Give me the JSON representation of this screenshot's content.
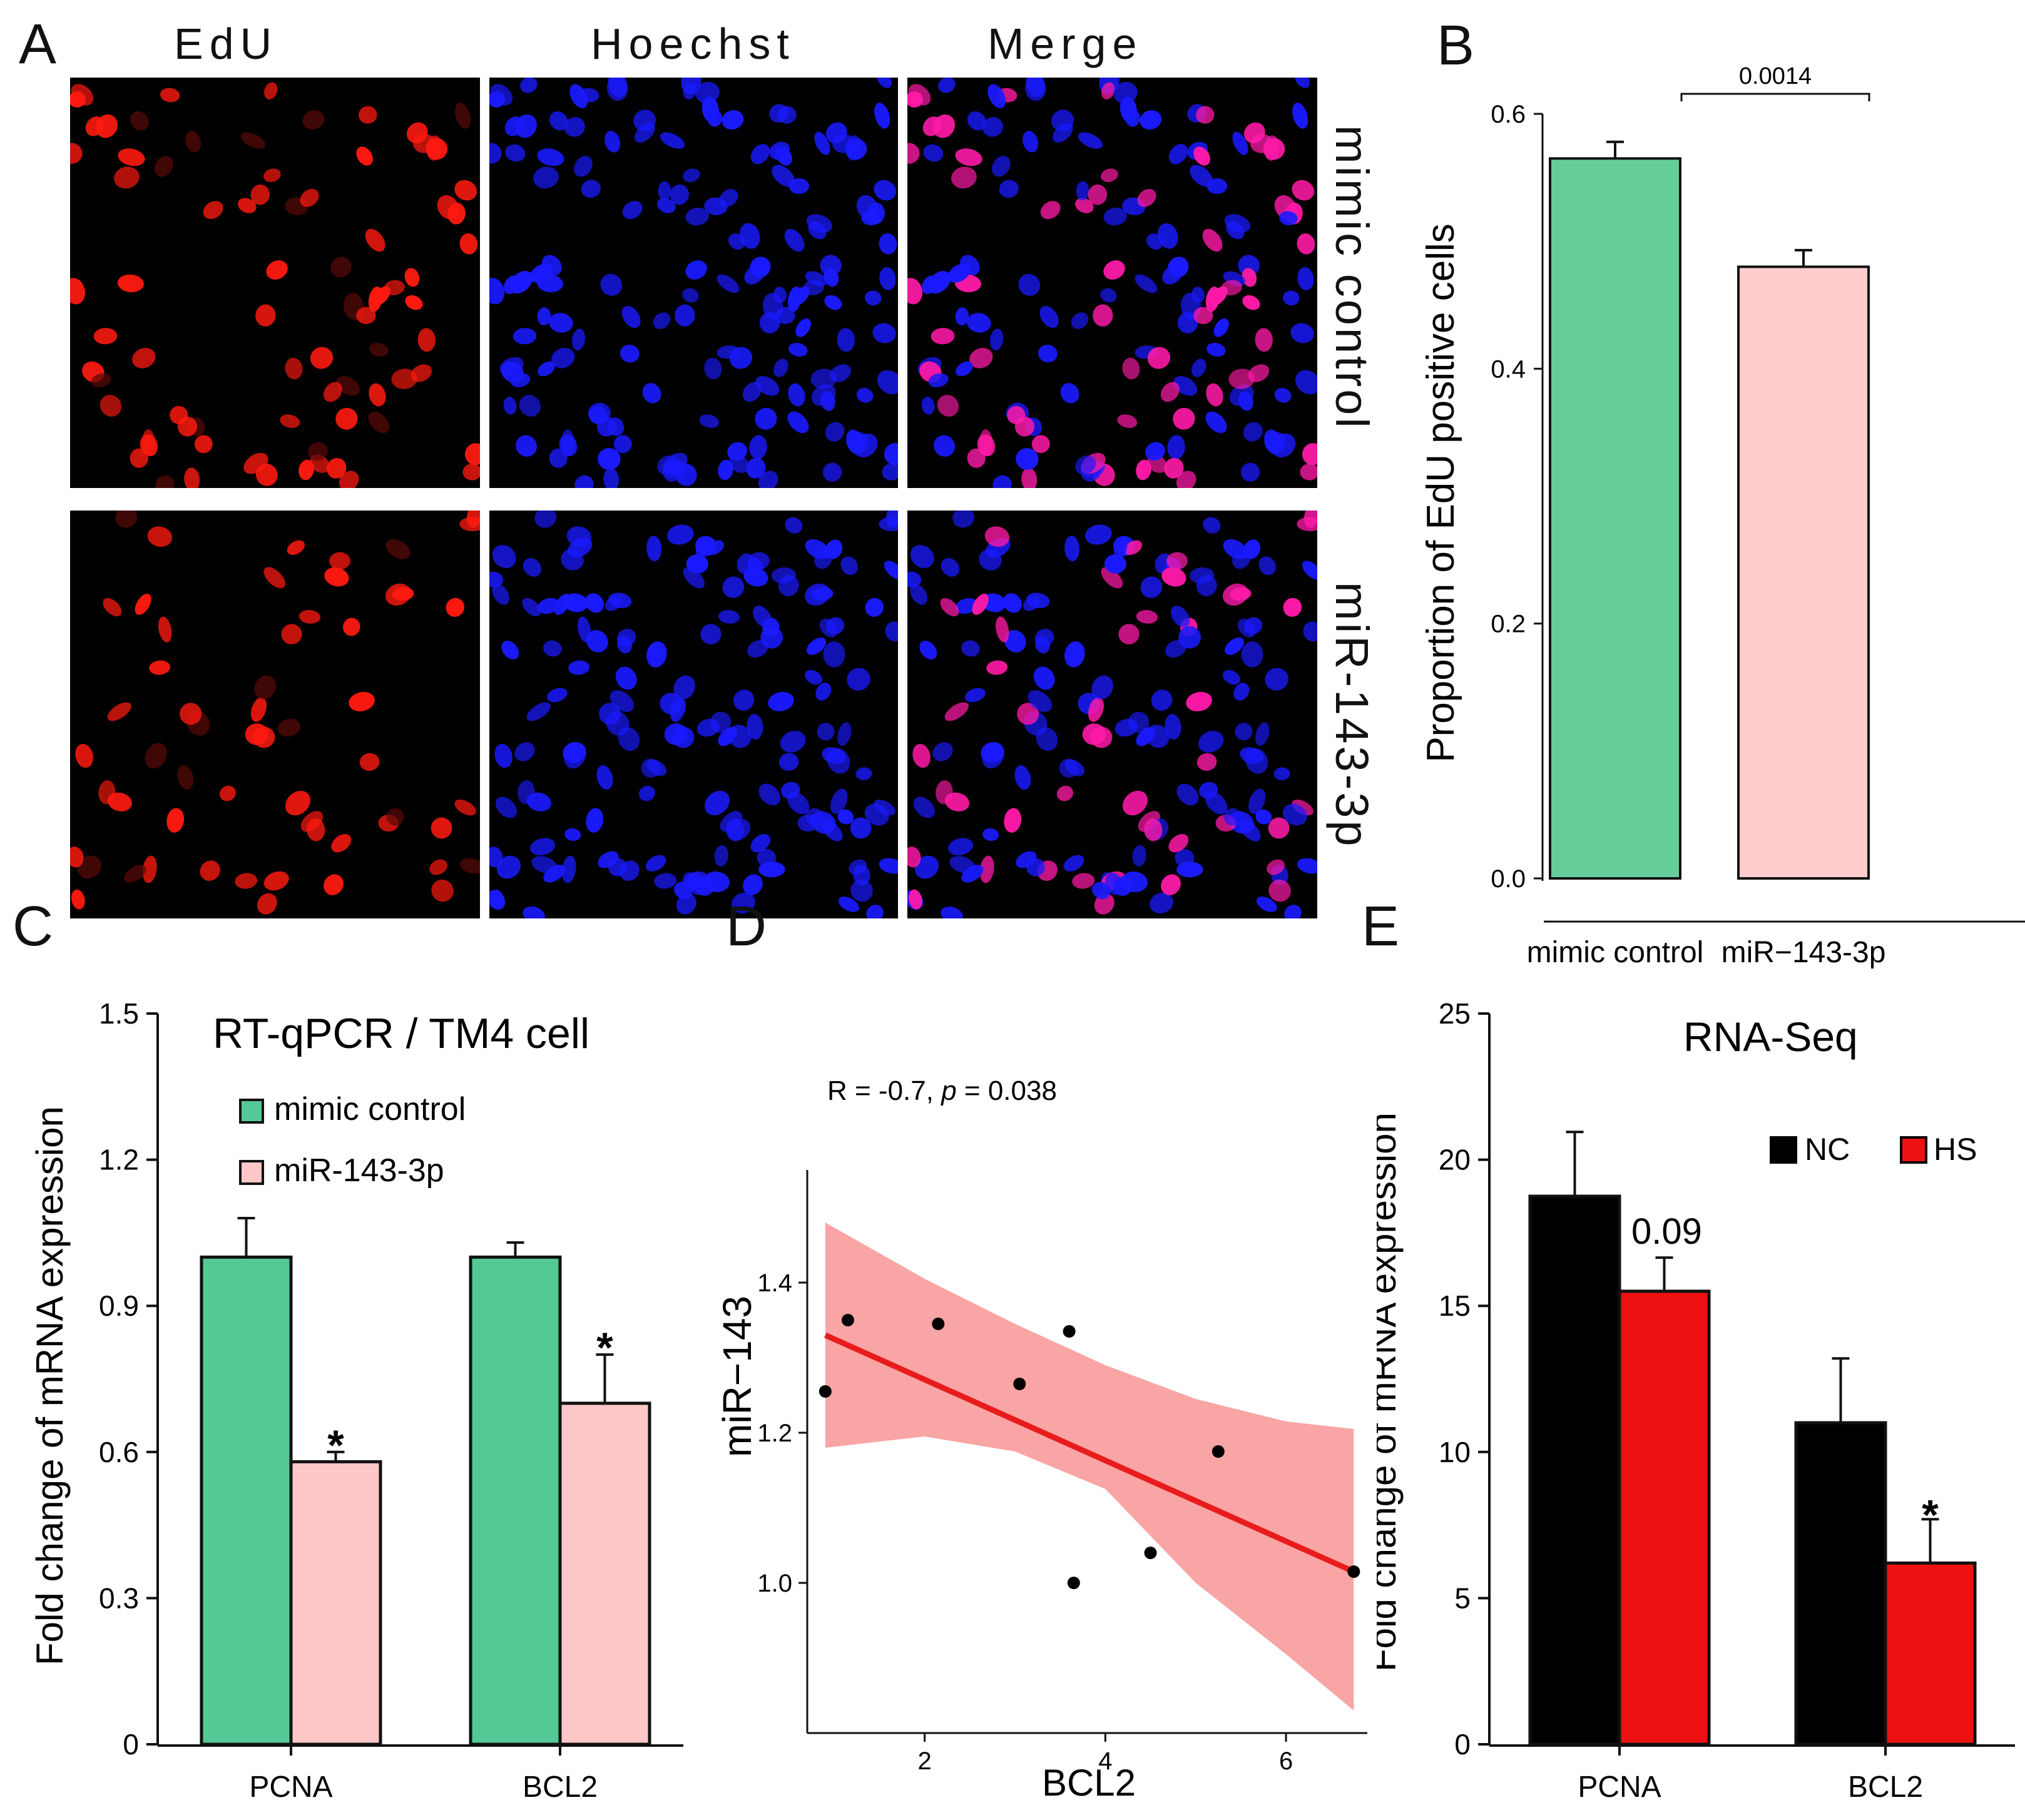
{
  "panel_letters": {
    "a": "A",
    "b": "B",
    "c": "C",
    "d": "D",
    "e": "E"
  },
  "panel_a": {
    "columns": [
      "EdU",
      "Hoechst",
      "Merge"
    ],
    "rows": [
      "mimic control",
      "miR-143-3p"
    ],
    "colors": {
      "edu": "#ff1a10",
      "hoechst": "#1a1aff",
      "merge": "#ff1aa8"
    }
  },
  "chart_data": [
    {
      "id": "B",
      "type": "bar",
      "categories": [
        "mimic control",
        "miR−143-3p"
      ],
      "values": [
        0.565,
        0.48
      ],
      "errors": [
        0.013,
        0.013
      ],
      "colors": [
        "#66cc99",
        "#ffcccc"
      ],
      "ylabel": "Proportion of EdU positive cells",
      "ylim": [
        0,
        0.6
      ],
      "yticks": [
        0.0,
        0.2,
        0.4,
        0.6
      ],
      "ytick_labels": [
        "0.0",
        "0.2",
        "0.4",
        "0.6"
      ],
      "annotation": "0.0014"
    },
    {
      "id": "C",
      "type": "bar",
      "title": "RT-qPCR / TM4 cell",
      "categories": [
        "PCNA",
        "BCL2"
      ],
      "series": [
        {
          "name": "mimic control",
          "values": [
            1.0,
            1.0
          ],
          "errors": [
            0.08,
            0.03
          ],
          "color": "#55c995"
        },
        {
          "name": "miR-143-3p",
          "values": [
            0.58,
            0.7
          ],
          "errors": [
            0.02,
            0.1
          ],
          "color": "#ffc7c7"
        }
      ],
      "significance": [
        "*",
        "*"
      ],
      "ylabel": "Fold change of mRNA expression",
      "ylim": [
        0,
        1.5
      ],
      "yticks": [
        0,
        0.3,
        0.6,
        0.9,
        1.2,
        1.5
      ],
      "ytick_labels": [
        "0",
        "0.3",
        "0.6",
        "0.9",
        "1.2",
        "1.5"
      ]
    },
    {
      "id": "D",
      "type": "scatter",
      "stat_text": {
        "prefix": "R = -0.7, ",
        "p": "p",
        "suffix": " = 0.038"
      },
      "xlabel": "BCL2",
      "ylabel": "miR−143",
      "xlim": [
        0.7,
        6.9
      ],
      "ylim": [
        0.8,
        1.55
      ],
      "xticks": [
        2,
        4,
        6
      ],
      "yticks": [
        1.0,
        1.2,
        1.4
      ],
      "ytick_labels": [
        "1.0",
        "1.2",
        "1.4"
      ],
      "points": [
        {
          "x": 0.9,
          "y": 1.255
        },
        {
          "x": 1.15,
          "y": 1.35
        },
        {
          "x": 2.15,
          "y": 1.345
        },
        {
          "x": 3.05,
          "y": 1.265
        },
        {
          "x": 3.6,
          "y": 1.335
        },
        {
          "x": 3.65,
          "y": 1.0
        },
        {
          "x": 4.5,
          "y": 1.04
        },
        {
          "x": 5.25,
          "y": 1.175
        },
        {
          "x": 6.75,
          "y": 1.015
        }
      ],
      "fit": {
        "x": [
          0.9,
          6.75
        ],
        "y": [
          1.33,
          1.015
        ]
      },
      "band": {
        "x": [
          0.9,
          2.0,
          3.0,
          4.0,
          5.0,
          6.0,
          6.75
        ],
        "upper": [
          1.48,
          1.405,
          1.345,
          1.29,
          1.245,
          1.215,
          1.205
        ],
        "lower": [
          1.18,
          1.195,
          1.175,
          1.125,
          1.0,
          0.905,
          0.83
        ]
      },
      "colors": {
        "line": "#e81c1c",
        "band": "#f9a0a0",
        "point": "#000000"
      }
    },
    {
      "id": "E",
      "type": "bar",
      "title": "RNA-Seq",
      "categories": [
        "PCNA",
        "BCL2"
      ],
      "series": [
        {
          "name": "NC",
          "values": [
            18.75,
            11.0
          ],
          "errors": [
            2.2,
            2.2
          ],
          "color": "#000000"
        },
        {
          "name": "HS",
          "values": [
            15.5,
            6.2
          ],
          "errors": [
            1.15,
            1.5
          ],
          "color": "#ee1111"
        }
      ],
      "annotations": [
        "0.09",
        "*"
      ],
      "ylabel": "Fold change of mRNA expression",
      "ylim": [
        0,
        25
      ],
      "yticks": [
        0,
        5,
        10,
        15,
        20,
        25
      ],
      "ytick_labels": [
        "0",
        "5",
        "10",
        "15",
        "20",
        "25"
      ]
    }
  ]
}
